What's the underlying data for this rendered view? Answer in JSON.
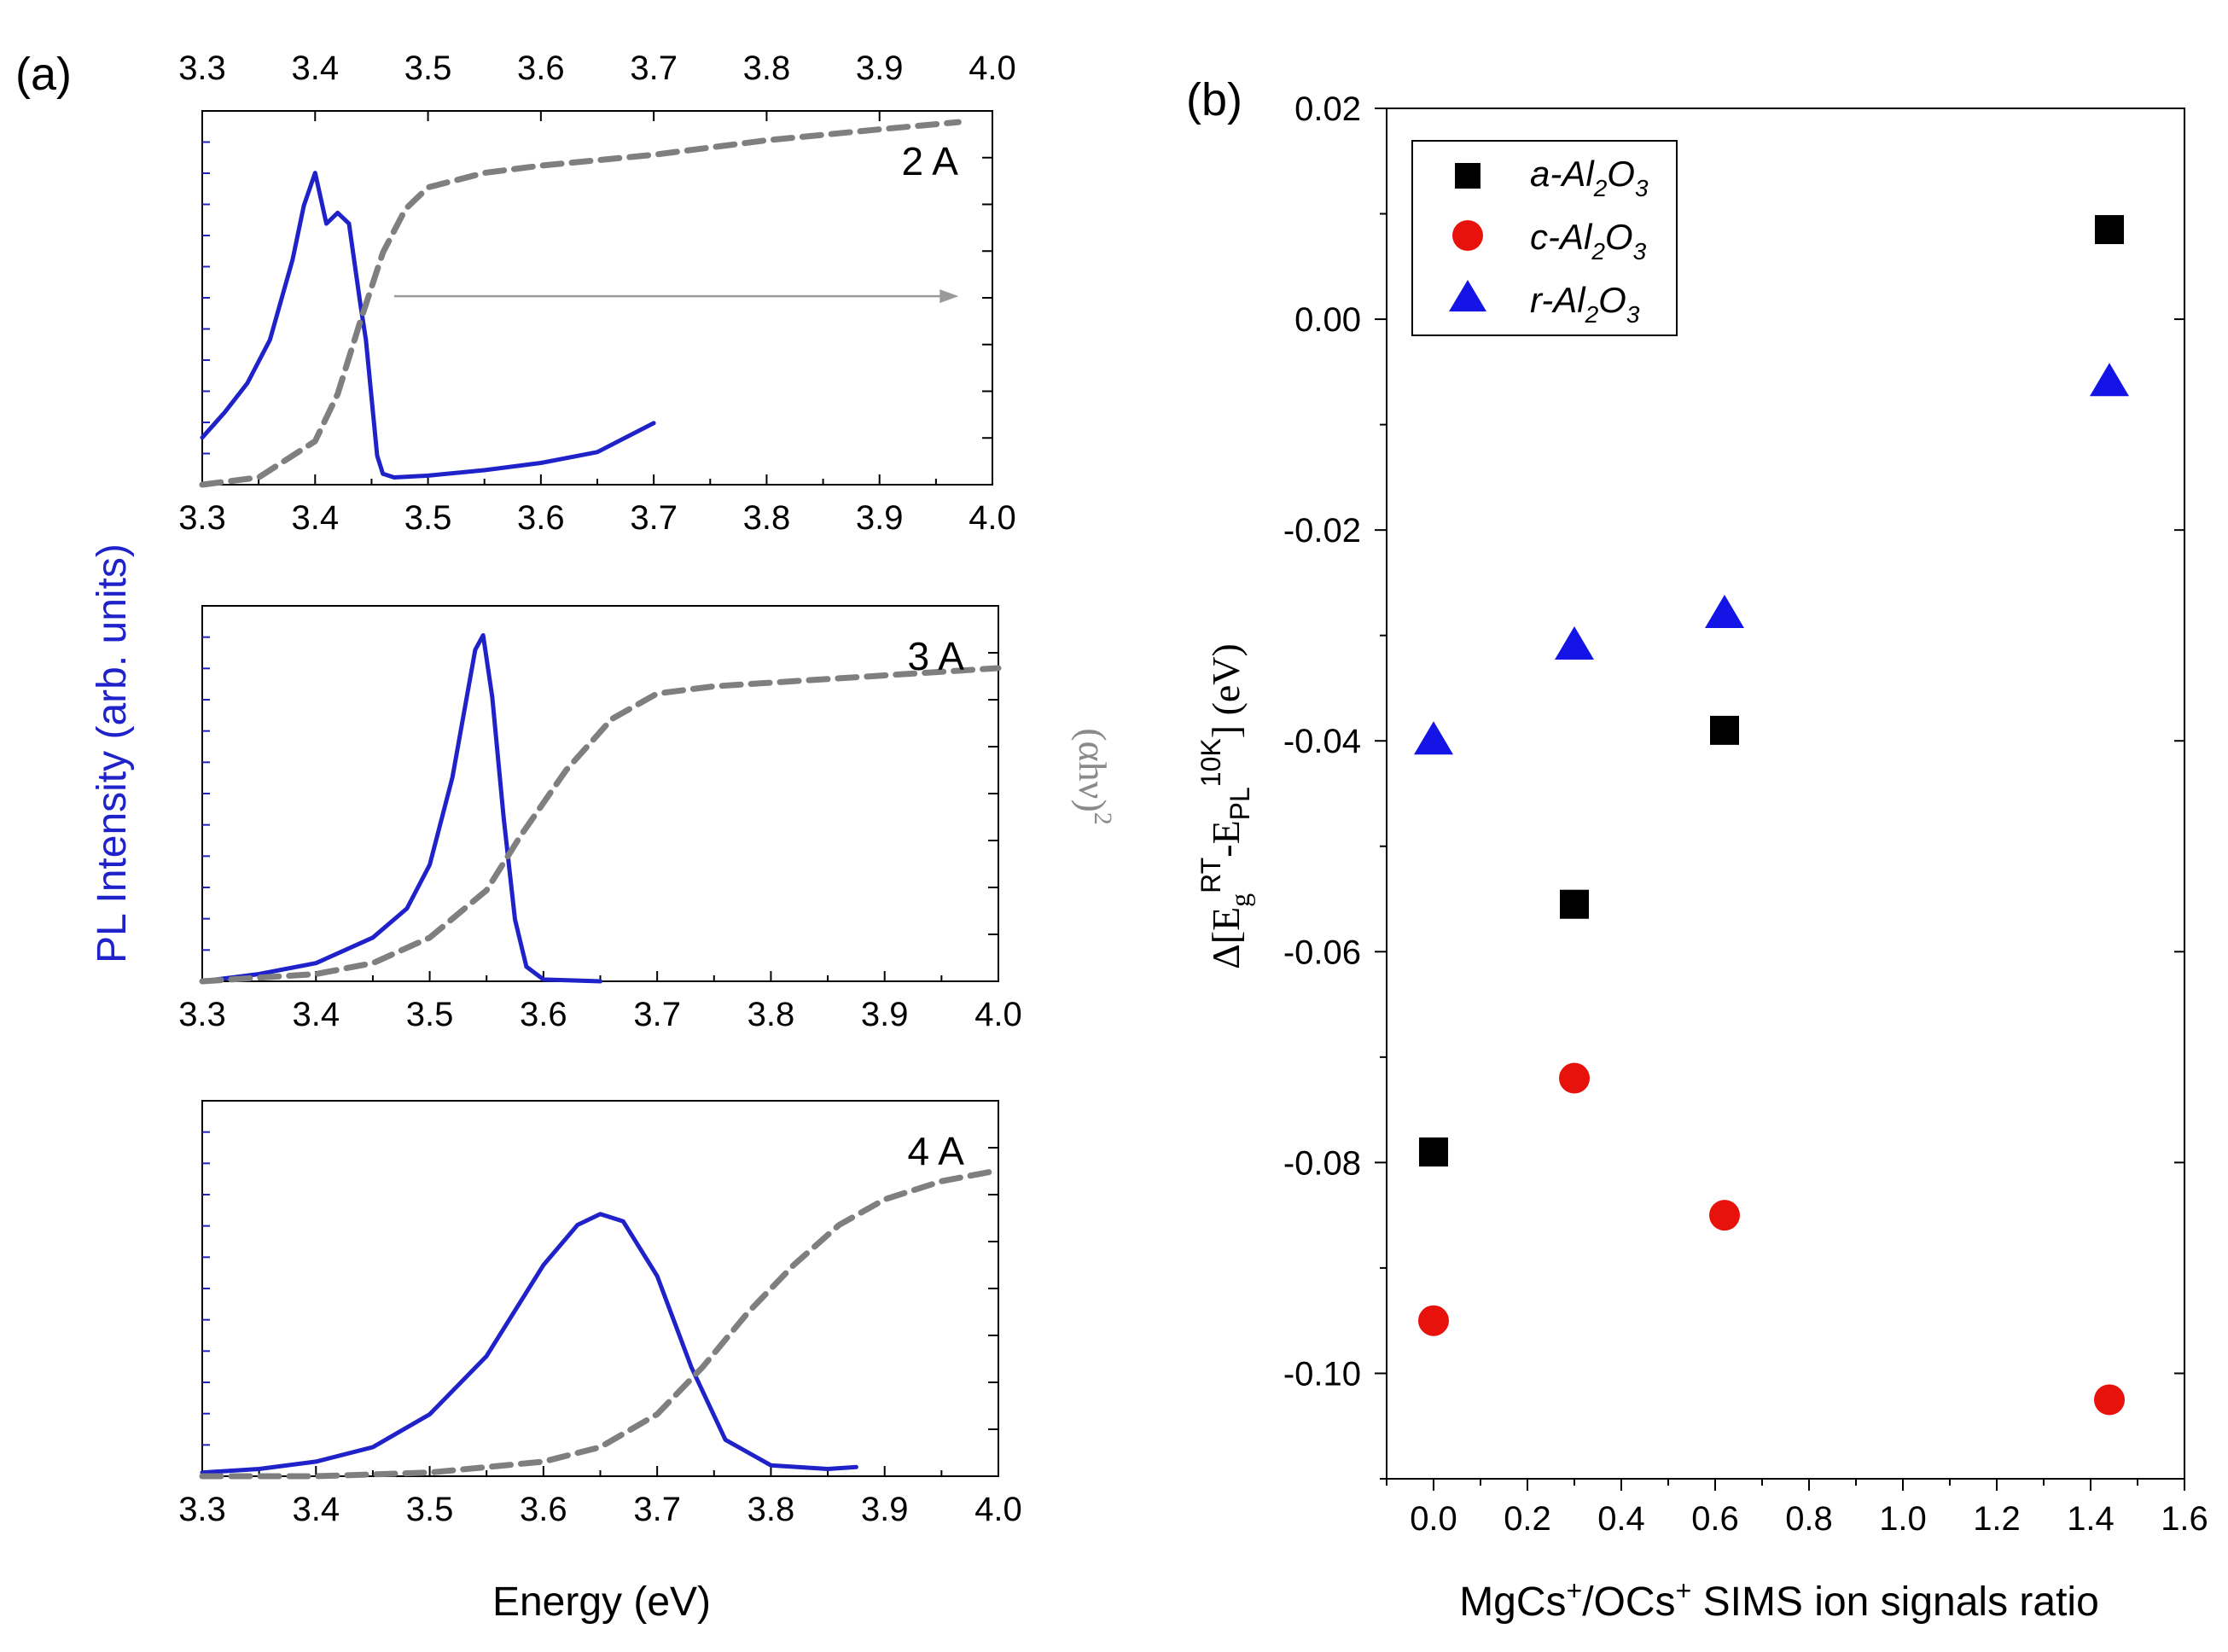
{
  "panel_a": {
    "label": "(a)",
    "ylabel_left": "PL Intensity (arb. units)",
    "ylabel_right": "(αhν)",
    "ylabel_right_sup": "2",
    "xlabel": "Energy (eV)",
    "colors": {
      "pl": "#1f22c8",
      "absorption": "#7f7f7f",
      "arrow": "#9a9a9a",
      "axis": "#000000"
    }
  },
  "panel_b": {
    "label": "(b)",
    "ylabel": "Δ[Eg RT − EPL 10K] (eV)",
    "ylabel_parts": {
      "delta": "Δ",
      "open": "[E",
      "sub_g": "g",
      "sup_rt": "RT",
      "mid": "-E",
      "sub_pl": "PL",
      "sup_10k": "10K",
      "close": "] (eV)"
    },
    "xlabel": "MgCs+/OCs+ SIMS ion signals ratio",
    "xlabel_parts": {
      "a": "MgCs",
      "sup1": "+",
      "b": "/OCs",
      "sup2": "+",
      "c": " SIMS ion signals ratio"
    },
    "legend": [
      {
        "prefix": "a-Al",
        "sub1": "2",
        "mid": "O",
        "sub2": "3",
        "marker": "square",
        "color": "#000000"
      },
      {
        "prefix": "c-Al",
        "sub1": "2",
        "mid": "O",
        "sub2": "3",
        "marker": "circle",
        "color": "#e8120c"
      },
      {
        "prefix": "r-Al",
        "sub1": "2",
        "mid": "O",
        "sub2": "3",
        "marker": "triangle",
        "color": "#1414e6"
      }
    ]
  },
  "chart_data": [
    {
      "type": "line",
      "title": "2 A",
      "xlabel": "Energy (eV)",
      "top_axis_ticks": [
        "3.3",
        "3.4",
        "3.5",
        "3.6",
        "3.7",
        "3.8",
        "3.9",
        "4.0"
      ],
      "xlim": [
        3.3,
        4.0
      ],
      "ylim": [
        0,
        1
      ],
      "xticks": [
        "3.3",
        "3.4",
        "3.5",
        "3.6",
        "3.7",
        "3.8",
        "3.9",
        "4.0"
      ],
      "annotations": [
        {
          "type": "arrow",
          "from": [
            3.47,
            0.52
          ],
          "to": [
            3.97,
            0.52
          ]
        }
      ],
      "series": [
        {
          "name": "PL",
          "style": "solid",
          "x": [
            3.3,
            3.32,
            3.34,
            3.36,
            3.38,
            3.39,
            3.4,
            3.41,
            3.42,
            3.43,
            3.44,
            3.445,
            3.45,
            3.455,
            3.46,
            3.47,
            3.5,
            3.55,
            3.6,
            3.65,
            3.7
          ],
          "y": [
            0.13,
            0.2,
            0.28,
            0.4,
            0.62,
            0.77,
            0.86,
            0.72,
            0.75,
            0.72,
            0.5,
            0.4,
            0.24,
            0.08,
            0.03,
            0.02,
            0.025,
            0.04,
            0.06,
            0.09,
            0.17
          ]
        },
        {
          "name": "(αhν)^2",
          "style": "dashed",
          "x": [
            3.3,
            3.35,
            3.4,
            3.42,
            3.44,
            3.46,
            3.48,
            3.5,
            3.55,
            3.6,
            3.7,
            3.8,
            3.9,
            3.97
          ],
          "y": [
            0.0,
            0.02,
            0.12,
            0.25,
            0.45,
            0.64,
            0.76,
            0.82,
            0.86,
            0.88,
            0.91,
            0.95,
            0.98,
            1.0
          ]
        }
      ]
    },
    {
      "type": "line",
      "title": "3 A",
      "xlabel": "Energy (eV)",
      "xlim": [
        3.3,
        4.0
      ],
      "ylim": [
        0,
        1
      ],
      "xticks": [
        "3.3",
        "3.4",
        "3.5",
        "3.6",
        "3.7",
        "3.8",
        "3.9",
        "4.0"
      ],
      "series": [
        {
          "name": "PL",
          "style": "solid",
          "x": [
            3.3,
            3.35,
            3.4,
            3.45,
            3.48,
            3.5,
            3.52,
            3.54,
            3.547,
            3.555,
            3.565,
            3.575,
            3.585,
            3.6,
            3.65
          ],
          "y": [
            0.0,
            0.02,
            0.05,
            0.12,
            0.2,
            0.32,
            0.56,
            0.91,
            0.95,
            0.78,
            0.45,
            0.17,
            0.04,
            0.005,
            0.0
          ]
        },
        {
          "name": "(αhν)^2",
          "style": "dashed",
          "x": [
            3.3,
            3.4,
            3.45,
            3.5,
            3.55,
            3.58,
            3.62,
            3.66,
            3.7,
            3.75,
            3.8,
            3.9,
            4.0
          ],
          "y": [
            0.0,
            0.02,
            0.05,
            0.12,
            0.25,
            0.4,
            0.58,
            0.72,
            0.79,
            0.81,
            0.82,
            0.84,
            0.86
          ]
        }
      ]
    },
    {
      "type": "line",
      "title": "4 A",
      "xlabel": "Energy (eV)",
      "xlim": [
        3.3,
        4.0
      ],
      "ylim": [
        0,
        1
      ],
      "xticks": [
        "3.3",
        "3.4",
        "3.5",
        "3.6",
        "3.7",
        "3.8",
        "3.9",
        "4.0"
      ],
      "series": [
        {
          "name": "PL",
          "style": "solid",
          "x": [
            3.3,
            3.35,
            3.4,
            3.45,
            3.5,
            3.55,
            3.6,
            3.63,
            3.65,
            3.67,
            3.7,
            3.73,
            3.76,
            3.8,
            3.85,
            3.875
          ],
          "y": [
            0.01,
            0.02,
            0.04,
            0.08,
            0.17,
            0.33,
            0.58,
            0.69,
            0.72,
            0.7,
            0.55,
            0.3,
            0.1,
            0.03,
            0.02,
            0.025
          ]
        },
        {
          "name": "(αhν)^2",
          "style": "dashed",
          "x": [
            3.3,
            3.4,
            3.5,
            3.6,
            3.65,
            3.7,
            3.74,
            3.78,
            3.82,
            3.86,
            3.9,
            3.95,
            4.0
          ],
          "y": [
            0.0,
            0.0,
            0.01,
            0.04,
            0.08,
            0.17,
            0.3,
            0.45,
            0.58,
            0.69,
            0.76,
            0.81,
            0.84
          ]
        }
      ]
    },
    {
      "type": "scatter",
      "title": "",
      "xlabel": "MgCs+/OCs+ SIMS ion signals ratio",
      "ylabel": "Δ[Eg RT − EPL 10K] (eV)",
      "xlim": [
        -0.1,
        1.6
      ],
      "ylim": [
        -0.11,
        0.02
      ],
      "xticks": [
        "0.0",
        "0.2",
        "0.4",
        "0.6",
        "0.8",
        "1.0",
        "1.2",
        "1.4",
        "1.6"
      ],
      "yticks": [
        "0.02",
        "0.00",
        "-0.02",
        "-0.04",
        "-0.06",
        "-0.08",
        "-0.10"
      ],
      "legend_position": "top-left",
      "series": [
        {
          "name": "a-Al2O3",
          "x": [
            0.0,
            0.3,
            0.62,
            1.44
          ],
          "y": [
            -0.079,
            -0.0555,
            -0.039,
            0.0085
          ]
        },
        {
          "name": "c-Al2O3",
          "x": [
            0.0,
            0.3,
            0.62,
            1.44
          ],
          "y": [
            -0.095,
            -0.072,
            -0.085,
            -0.1025
          ]
        },
        {
          "name": "r-Al2O3",
          "x": [
            0.0,
            0.3,
            0.62,
            1.44
          ],
          "y": [
            -0.04,
            -0.031,
            -0.028,
            -0.006
          ]
        }
      ]
    }
  ]
}
